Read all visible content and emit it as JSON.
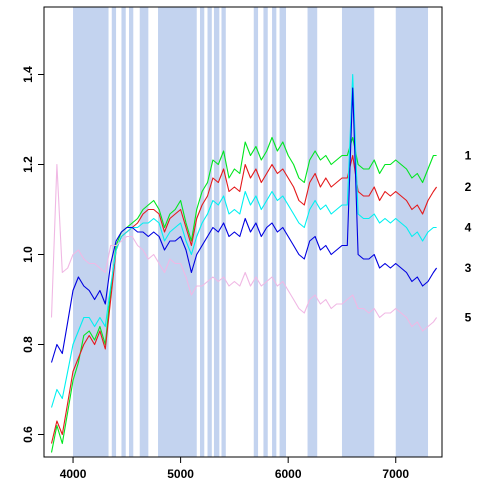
{
  "chart_data": {
    "type": "line",
    "title": "",
    "xlabel": "",
    "ylabel": "",
    "xlim": [
      3730,
      7430
    ],
    "ylim": [
      0.55,
      1.55
    ],
    "x_ticks": [
      4000,
      5000,
      6000,
      7000
    ],
    "y_ticks": [
      0.6,
      0.8,
      1.0,
      1.2,
      1.4
    ],
    "x_tick_labels": [
      "4000",
      "5000",
      "6000",
      "7000"
    ],
    "y_tick_labels": [
      "0.6",
      "0.8",
      "1.0",
      "1.2",
      "1.4"
    ],
    "grid": false,
    "legend": "labels at right end of each series",
    "shaded_bands": [
      [
        4000,
        4330
      ],
      [
        4360,
        4400
      ],
      [
        4450,
        4490
      ],
      [
        4520,
        4560
      ],
      [
        4620,
        4700
      ],
      [
        4790,
        5150
      ],
      [
        5180,
        5220
      ],
      [
        5250,
        5290
      ],
      [
        5310,
        5360
      ],
      [
        5380,
        5420
      ],
      [
        5680,
        5720
      ],
      [
        5770,
        5810
      ],
      [
        5850,
        5890
      ],
      [
        5920,
        5980
      ],
      [
        6180,
        6270
      ],
      [
        6500,
        6800
      ],
      [
        7000,
        7300
      ]
    ],
    "band_color": "#c3d3ef",
    "series": [
      {
        "name": "1",
        "color": "#00e620",
        "x": [
          3800,
          3850,
          3900,
          3950,
          4000,
          4050,
          4100,
          4150,
          4200,
          4250,
          4300,
          4350,
          4400,
          4450,
          4500,
          4550,
          4600,
          4650,
          4700,
          4750,
          4800,
          4850,
          4900,
          4950,
          5000,
          5050,
          5100,
          5150,
          5200,
          5250,
          5300,
          5350,
          5400,
          5450,
          5500,
          5550,
          5600,
          5650,
          5700,
          5750,
          5800,
          5850,
          5900,
          5950,
          6000,
          6050,
          6100,
          6150,
          6200,
          6250,
          6300,
          6350,
          6400,
          6450,
          6500,
          6550,
          6600,
          6650,
          6700,
          6750,
          6800,
          6850,
          6900,
          6950,
          7000,
          7050,
          7100,
          7150,
          7200,
          7250,
          7300,
          7350,
          7380
        ],
        "y": [
          0.56,
          0.62,
          0.58,
          0.65,
          0.72,
          0.76,
          0.82,
          0.83,
          0.81,
          0.84,
          0.8,
          0.92,
          1.02,
          1.05,
          1.06,
          1.07,
          1.08,
          1.1,
          1.11,
          1.12,
          1.1,
          1.06,
          1.09,
          1.1,
          1.12,
          1.07,
          1.03,
          1.1,
          1.14,
          1.16,
          1.21,
          1.2,
          1.23,
          1.17,
          1.19,
          1.18,
          1.25,
          1.22,
          1.24,
          1.21,
          1.23,
          1.26,
          1.23,
          1.25,
          1.22,
          1.2,
          1.17,
          1.16,
          1.21,
          1.23,
          1.21,
          1.22,
          1.2,
          1.21,
          1.22,
          1.22,
          1.26,
          1.2,
          1.19,
          1.19,
          1.21,
          1.18,
          1.2,
          1.2,
          1.21,
          1.2,
          1.19,
          1.17,
          1.18,
          1.16,
          1.19,
          1.22,
          1.22
        ]
      },
      {
        "name": "2",
        "color": "#e41a1c",
        "x": [
          3800,
          3850,
          3900,
          3950,
          4000,
          4050,
          4100,
          4150,
          4200,
          4250,
          4300,
          4350,
          4400,
          4450,
          4500,
          4550,
          4600,
          4650,
          4700,
          4750,
          4800,
          4850,
          4900,
          4950,
          5000,
          5050,
          5100,
          5150,
          5200,
          5250,
          5300,
          5350,
          5400,
          5450,
          5500,
          5550,
          5600,
          5650,
          5700,
          5750,
          5800,
          5850,
          5900,
          5950,
          6000,
          6050,
          6100,
          6150,
          6200,
          6250,
          6300,
          6350,
          6400,
          6450,
          6500,
          6550,
          6600,
          6650,
          6700,
          6750,
          6800,
          6850,
          6900,
          6950,
          7000,
          7050,
          7100,
          7150,
          7200,
          7250,
          7300,
          7350,
          7380
        ],
        "y": [
          0.58,
          0.63,
          0.6,
          0.67,
          0.74,
          0.77,
          0.8,
          0.82,
          0.8,
          0.83,
          0.79,
          0.9,
          1.01,
          1.04,
          1.05,
          1.06,
          1.07,
          1.09,
          1.1,
          1.1,
          1.09,
          1.05,
          1.08,
          1.09,
          1.1,
          1.06,
          1.02,
          1.08,
          1.11,
          1.13,
          1.17,
          1.16,
          1.19,
          1.14,
          1.15,
          1.14,
          1.2,
          1.17,
          1.19,
          1.16,
          1.18,
          1.2,
          1.18,
          1.19,
          1.17,
          1.15,
          1.12,
          1.11,
          1.16,
          1.18,
          1.15,
          1.17,
          1.15,
          1.16,
          1.17,
          1.17,
          1.22,
          1.14,
          1.13,
          1.13,
          1.15,
          1.12,
          1.14,
          1.13,
          1.14,
          1.13,
          1.12,
          1.1,
          1.11,
          1.09,
          1.12,
          1.14,
          1.15
        ]
      },
      {
        "name": "4",
        "color": "#00f0f0",
        "x": [
          3800,
          3850,
          3900,
          3950,
          4000,
          4050,
          4100,
          4150,
          4200,
          4250,
          4300,
          4350,
          4400,
          4450,
          4500,
          4550,
          4600,
          4650,
          4700,
          4750,
          4800,
          4850,
          4900,
          4950,
          5000,
          5050,
          5100,
          5150,
          5200,
          5250,
          5300,
          5350,
          5400,
          5450,
          5500,
          5550,
          5600,
          5650,
          5700,
          5750,
          5800,
          5850,
          5900,
          5950,
          6000,
          6050,
          6100,
          6150,
          6200,
          6250,
          6300,
          6350,
          6400,
          6450,
          6500,
          6550,
          6600,
          6650,
          6700,
          6750,
          6800,
          6850,
          6900,
          6950,
          7000,
          7050,
          7100,
          7150,
          7200,
          7250,
          7300,
          7350,
          7380
        ],
        "y": [
          0.66,
          0.7,
          0.68,
          0.74,
          0.8,
          0.83,
          0.86,
          0.86,
          0.84,
          0.86,
          0.84,
          0.93,
          1.01,
          1.04,
          1.05,
          1.06,
          1.06,
          1.07,
          1.07,
          1.08,
          1.07,
          1.03,
          1.05,
          1.06,
          1.07,
          1.03,
          1.0,
          1.04,
          1.07,
          1.09,
          1.12,
          1.11,
          1.13,
          1.09,
          1.1,
          1.09,
          1.14,
          1.11,
          1.13,
          1.1,
          1.12,
          1.14,
          1.12,
          1.13,
          1.11,
          1.09,
          1.07,
          1.06,
          1.1,
          1.12,
          1.1,
          1.11,
          1.09,
          1.1,
          1.11,
          1.11,
          1.4,
          1.09,
          1.08,
          1.08,
          1.09,
          1.07,
          1.08,
          1.07,
          1.08,
          1.07,
          1.06,
          1.04,
          1.05,
          1.03,
          1.05,
          1.06,
          1.06
        ]
      },
      {
        "name": "3",
        "color": "#0000e0",
        "x": [
          3800,
          3850,
          3900,
          3950,
          4000,
          4050,
          4100,
          4150,
          4200,
          4250,
          4300,
          4350,
          4400,
          4450,
          4500,
          4550,
          4600,
          4650,
          4700,
          4750,
          4800,
          4850,
          4900,
          4950,
          5000,
          5050,
          5100,
          5150,
          5200,
          5250,
          5300,
          5350,
          5400,
          5450,
          5500,
          5550,
          5600,
          5650,
          5700,
          5750,
          5800,
          5850,
          5900,
          5950,
          6000,
          6050,
          6100,
          6150,
          6200,
          6250,
          6300,
          6350,
          6400,
          6450,
          6500,
          6550,
          6600,
          6650,
          6700,
          6750,
          6800,
          6850,
          6900,
          6950,
          7000,
          7050,
          7100,
          7150,
          7200,
          7250,
          7300,
          7350,
          7380
        ],
        "y": [
          0.76,
          0.8,
          0.78,
          0.85,
          0.92,
          0.95,
          0.93,
          0.92,
          0.9,
          0.92,
          0.89,
          0.98,
          1.03,
          1.05,
          1.06,
          1.06,
          1.05,
          1.05,
          1.04,
          1.05,
          1.04,
          1.01,
          1.03,
          1.03,
          1.04,
          1.01,
          0.96,
          1.0,
          1.02,
          1.04,
          1.06,
          1.05,
          1.07,
          1.04,
          1.05,
          1.04,
          1.08,
          1.05,
          1.07,
          1.04,
          1.06,
          1.07,
          1.05,
          1.06,
          1.04,
          1.02,
          1.0,
          0.99,
          1.03,
          1.04,
          1.01,
          1.02,
          1.0,
          1.01,
          1.02,
          1.02,
          1.37,
          1.0,
          0.99,
          0.99,
          1.0,
          0.97,
          0.98,
          0.97,
          0.98,
          0.97,
          0.96,
          0.94,
          0.95,
          0.93,
          0.94,
          0.96,
          0.97
        ]
      },
      {
        "name": "5",
        "color": "#f0b8e4",
        "x": [
          3800,
          3850,
          3900,
          3950,
          4000,
          4050,
          4100,
          4150,
          4200,
          4250,
          4300,
          4350,
          4400,
          4450,
          4500,
          4550,
          4600,
          4650,
          4700,
          4750,
          4800,
          4850,
          4900,
          4950,
          5000,
          5050,
          5100,
          5150,
          5200,
          5250,
          5300,
          5350,
          5400,
          5450,
          5500,
          5550,
          5600,
          5650,
          5700,
          5750,
          5800,
          5850,
          5900,
          5950,
          6000,
          6050,
          6100,
          6150,
          6200,
          6250,
          6300,
          6350,
          6400,
          6450,
          6500,
          6550,
          6600,
          6650,
          6700,
          6750,
          6800,
          6850,
          6900,
          6950,
          7000,
          7050,
          7100,
          7150,
          7200,
          7250,
          7300,
          7350,
          7380
        ],
        "y": [
          0.86,
          1.2,
          0.96,
          0.97,
          1.0,
          1.01,
          0.99,
          0.98,
          0.98,
          0.97,
          0.96,
          1.02,
          1.02,
          1.03,
          1.04,
          1.04,
          1.02,
          1.01,
          0.99,
          1.0,
          0.98,
          0.96,
          0.99,
          0.98,
          0.98,
          0.95,
          0.91,
          0.93,
          0.93,
          0.94,
          0.95,
          0.94,
          0.95,
          0.93,
          0.94,
          0.93,
          0.96,
          0.93,
          0.95,
          0.93,
          0.94,
          0.95,
          0.93,
          0.94,
          0.92,
          0.9,
          0.88,
          0.87,
          0.9,
          0.91,
          0.89,
          0.9,
          0.88,
          0.89,
          0.89,
          0.9,
          0.91,
          0.88,
          0.88,
          0.87,
          0.88,
          0.86,
          0.87,
          0.87,
          0.88,
          0.87,
          0.86,
          0.84,
          0.85,
          0.83,
          0.84,
          0.85,
          0.86
        ]
      }
    ]
  }
}
